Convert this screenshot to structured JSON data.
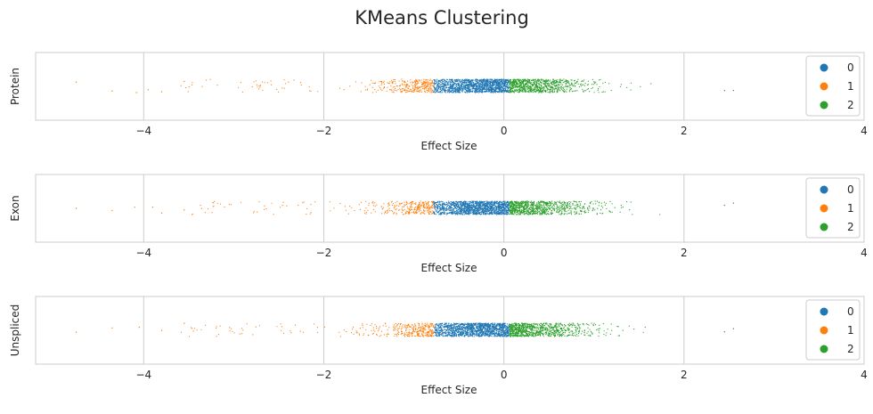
{
  "chart_data": {
    "type": "scatter",
    "style": "strip plot",
    "title": "KMeans Clustering",
    "xlabel": "Effect Size",
    "xlim": [
      -5.2,
      4.0
    ],
    "xticks": [
      -4,
      -2,
      0,
      2,
      4
    ],
    "xtick_labels": [
      "−4",
      "−2",
      "0",
      "2",
      "4"
    ],
    "grid": true,
    "legend_position": "upper right",
    "clusters": [
      {
        "label": "0",
        "color": "#1f77b4",
        "range": [
          -0.78,
          0.06
        ]
      },
      {
        "label": "1",
        "color": "#ff7f0e",
        "range": [
          -4.75,
          -0.78
        ]
      },
      {
        "label": "2",
        "color": "#2ca02c",
        "range": [
          0.06,
          2.58
        ]
      }
    ],
    "panels": [
      {
        "ylabel": "Protein",
        "outliers": [
          {
            "x": -4.75,
            "cluster": "1"
          },
          {
            "x": -4.35,
            "cluster": "1"
          },
          {
            "x": -4.08,
            "cluster": "1"
          },
          {
            "x": -3.95,
            "cluster": "1"
          },
          {
            "x": -3.8,
            "cluster": "1"
          },
          {
            "x": -3.55,
            "cluster": "1"
          },
          {
            "x": 2.45,
            "cluster": "2"
          },
          {
            "x": 2.55,
            "cluster": "2"
          }
        ]
      },
      {
        "ylabel": "Exon",
        "outliers": [
          {
            "x": -4.75,
            "cluster": "1"
          },
          {
            "x": -4.35,
            "cluster": "1"
          },
          {
            "x": -4.1,
            "cluster": "1"
          },
          {
            "x": -3.9,
            "cluster": "1"
          },
          {
            "x": -3.8,
            "cluster": "1"
          },
          {
            "x": -3.55,
            "cluster": "1"
          },
          {
            "x": 2.45,
            "cluster": "2"
          },
          {
            "x": 2.55,
            "cluster": "2"
          }
        ]
      },
      {
        "ylabel": "Unspliced",
        "outliers": [
          {
            "x": -4.75,
            "cluster": "1"
          },
          {
            "x": -4.35,
            "cluster": "1"
          },
          {
            "x": -4.05,
            "cluster": "1"
          },
          {
            "x": -3.8,
            "cluster": "1"
          },
          {
            "x": -3.55,
            "cluster": "1"
          },
          {
            "x": 2.45,
            "cluster": "2"
          },
          {
            "x": 2.55,
            "cluster": "2"
          }
        ]
      }
    ]
  }
}
